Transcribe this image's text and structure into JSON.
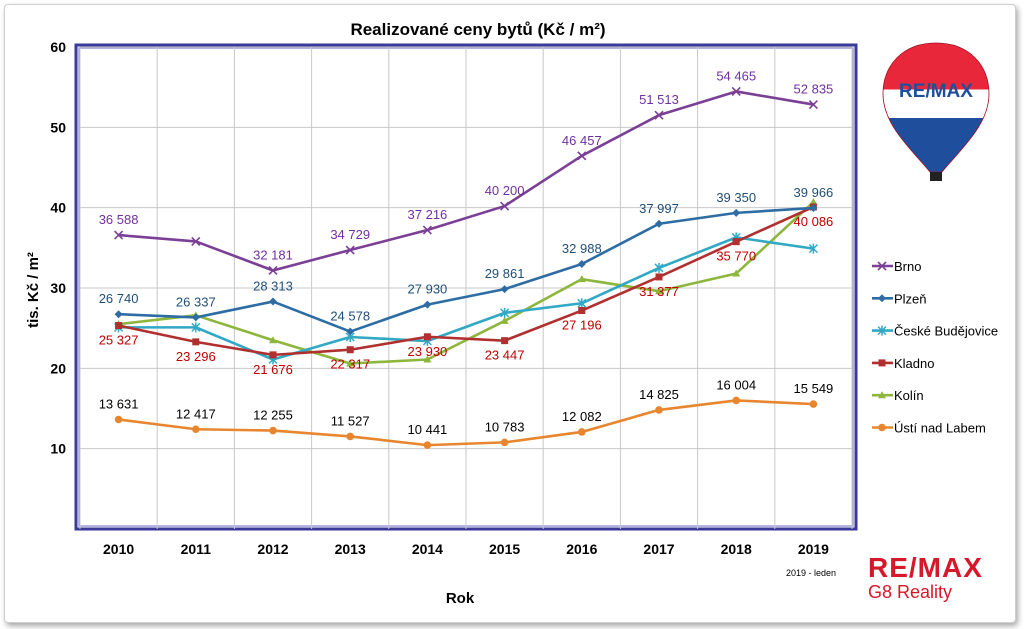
{
  "chart_data": {
    "type": "line",
    "title": "Realizované ceny bytů (Kč / m²)",
    "xlabel": "Rok",
    "ylabel": "tis. Kč / m²",
    "ylim": [
      0,
      60
    ],
    "yticks": [
      10,
      20,
      30,
      40,
      50,
      60
    ],
    "grid": true,
    "legend_position": "right",
    "categories": [
      "2010",
      "2011",
      "2012",
      "2013",
      "2014",
      "2015",
      "2016",
      "2017",
      "2018",
      "2019"
    ],
    "series": [
      {
        "name": "Brno",
        "color": "#7b3f96",
        "marker": "x",
        "values": [
          36.588,
          35.8,
          32.181,
          34.729,
          37.216,
          40.2,
          46.457,
          51.513,
          54.465,
          52.835
        ],
        "labels": [
          "36 588",
          "",
          "32 181",
          "34 729",
          "37 216",
          "40 200",
          "46 457",
          "51 513",
          "54 465",
          "52 835"
        ],
        "label_color": "#7030a0",
        "label_side": "above"
      },
      {
        "name": "Plzeň",
        "color": "#2e6da4",
        "marker": "diamond",
        "values": [
          26.74,
          26.337,
          28.313,
          24.578,
          27.93,
          29.861,
          32.988,
          37.997,
          39.35,
          39.966
        ],
        "labels": [
          "26 740",
          "26 337",
          "28 313",
          "24 578",
          "27 930",
          "29 861",
          "32 988",
          "37 997",
          "39 350",
          "39 966"
        ],
        "label_color": "#1f4e79",
        "label_side": "above"
      },
      {
        "name": "České Budějovice",
        "color": "#31a8c4",
        "marker": "star",
        "values": [
          25.1,
          25.1,
          21.1,
          23.9,
          23.4,
          26.9,
          28.1,
          32.5,
          36.3,
          34.9
        ],
        "labels": [],
        "label_color": "#31a8c4",
        "label_side": "above"
      },
      {
        "name": "Kladno",
        "color": "#b03030",
        "marker": "square",
        "values": [
          25.327,
          23.296,
          21.676,
          22.317,
          23.93,
          23.447,
          27.196,
          31.377,
          35.77,
          40.086
        ],
        "labels": [
          "25 327",
          "23 296",
          "21 676",
          "22 317",
          "23 930",
          "23 447",
          "27 196",
          "31 377",
          "35 770",
          "40 086"
        ],
        "label_color": "#c00000",
        "label_side": "below"
      },
      {
        "name": "Kolín",
        "color": "#8db63c",
        "marker": "triangle",
        "values": [
          25.5,
          26.6,
          23.5,
          20.6,
          21.1,
          25.9,
          31.1,
          29.6,
          31.8,
          40.7
        ],
        "labels": [],
        "label_color": "#8db63c",
        "label_side": "above"
      },
      {
        "name": "Ústí nad Labem",
        "color": "#e8862f",
        "marker": "circle",
        "values": [
          13.631,
          12.417,
          12.255,
          11.527,
          10.441,
          10.783,
          12.082,
          14.825,
          16.004,
          15.549
        ],
        "labels": [
          "13 631",
          "12 417",
          "12 255",
          "11 527",
          "10 441",
          "10 783",
          "12 082",
          "14 825",
          "16 004",
          "15 549"
        ],
        "label_color": "#000000",
        "label_side": "above"
      }
    ]
  },
  "logo": {
    "balloon_text": "RE/MAX",
    "brand": "RE/MAX",
    "agency": "G8 Reality"
  },
  "note": "2019 - leden"
}
